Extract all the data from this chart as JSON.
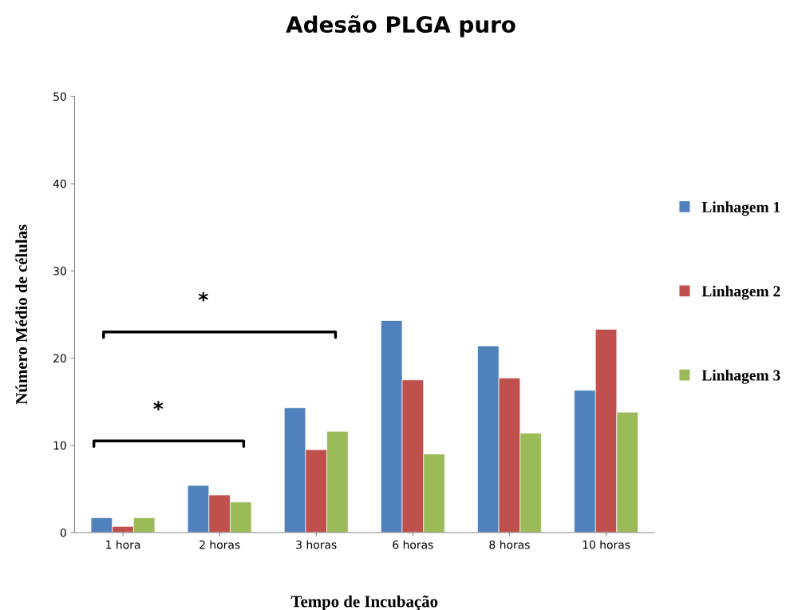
{
  "chart_data": {
    "type": "bar",
    "title": "Adesão PLGA puro",
    "xlabel": "Tempo de Incubação",
    "ylabel": "Número Médio de células",
    "categories": [
      "1 hora",
      "2 horas",
      "3 horas",
      "6 horas",
      "8 horas",
      "10 horas"
    ],
    "series": [
      {
        "name": "Linhagem 1",
        "color": "#4f81bd",
        "values": [
          1.7,
          5.4,
          14.3,
          24.3,
          21.4,
          16.3
        ]
      },
      {
        "name": "Linhagem 2",
        "color": "#c0504d",
        "values": [
          0.7,
          4.3,
          9.5,
          17.5,
          17.7,
          23.3
        ]
      },
      {
        "name": "Linhagem 3",
        "color": "#9bbb59",
        "values": [
          1.7,
          3.5,
          11.6,
          9.0,
          11.4,
          13.8
        ]
      }
    ],
    "ylim": [
      0,
      50
    ],
    "yticks": [
      0,
      10,
      20,
      30,
      40,
      50
    ],
    "grid": false,
    "legend": "right",
    "annotations": [
      "*",
      "*"
    ]
  }
}
